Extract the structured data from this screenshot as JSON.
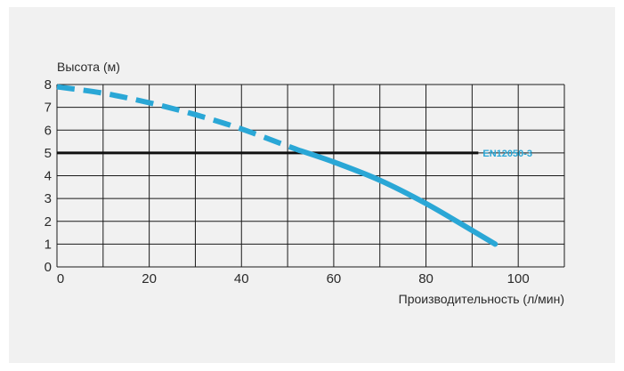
{
  "chart_data": {
    "type": "line",
    "title": "",
    "xlabel": "Производительность (л/мин)",
    "ylabel": "Высота (м)",
    "xlim": [
      0,
      110
    ],
    "ylim": [
      0,
      8
    ],
    "x_ticks": [
      "0",
      "20",
      "40",
      "60",
      "80",
      "100"
    ],
    "y_ticks": [
      "0",
      "1",
      "2",
      "3",
      "4",
      "5",
      "6",
      "7",
      "8"
    ],
    "grid": true,
    "series": [
      {
        "style": "dashed",
        "color": "#2aa7d6",
        "points": [
          [
            0,
            7.9
          ],
          [
            10,
            7.62
          ],
          [
            20,
            7.2
          ],
          [
            30,
            6.68
          ],
          [
            40,
            6.05
          ],
          [
            50,
            5.3
          ],
          [
            52,
            5.15
          ]
        ]
      },
      {
        "style": "solid",
        "color": "#2aa7d6",
        "points": [
          [
            52,
            5.15
          ],
          [
            60,
            4.6
          ],
          [
            70,
            3.8
          ],
          [
            80,
            2.78
          ],
          [
            90,
            1.6
          ],
          [
            95,
            1.0
          ]
        ]
      }
    ],
    "reference_line": {
      "y": 5,
      "label": "EN12050-3",
      "color": "#111111",
      "label_color": "#2aa7d6"
    }
  }
}
